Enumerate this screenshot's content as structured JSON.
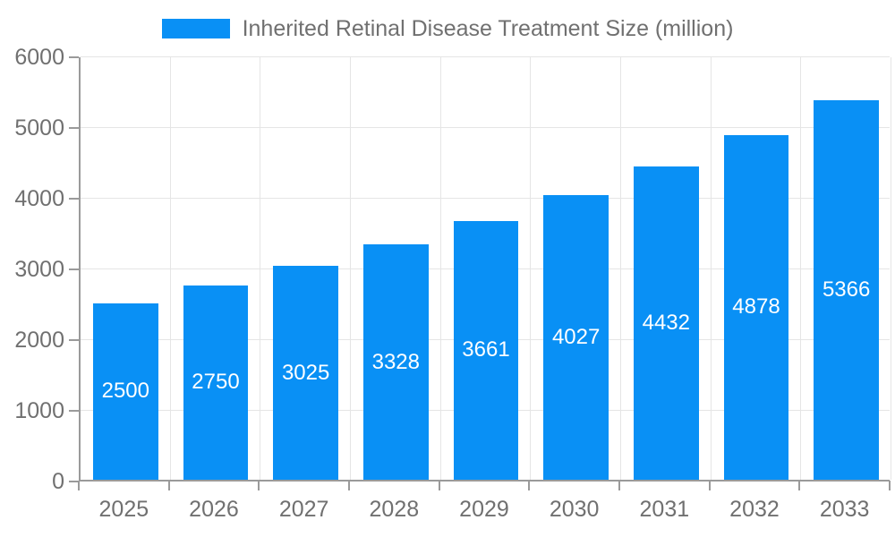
{
  "legend": {
    "label": "Inherited Retinal Disease Treatment Size (million)"
  },
  "chart_data": {
    "type": "bar",
    "title": "",
    "categories": [
      "2025",
      "2026",
      "2027",
      "2028",
      "2029",
      "2030",
      "2031",
      "2032",
      "2033"
    ],
    "series": [
      {
        "name": "Inherited Retinal Disease Treatment Size (million)",
        "values": [
          2500,
          2750,
          3025,
          3328,
          3661,
          4027,
          4432,
          4878,
          5366
        ]
      }
    ],
    "value_labels": [
      "2500",
      "2750",
      "3025",
      "3328",
      "3661",
      "4027",
      "4432",
      "4878",
      "5366"
    ],
    "xlabel": "",
    "ylabel": "",
    "ylim": [
      0,
      6000
    ],
    "yticks": [
      0,
      1000,
      2000,
      3000,
      4000,
      5000,
      6000
    ],
    "grid": true,
    "legend_position": "top-center",
    "value_label_position": "inside-middle"
  },
  "colors": {
    "bar": "#0990f5",
    "grid": "#e5e5e5",
    "axis": "#9a9a9a",
    "tick_text": "#707070",
    "value_text": "#ffffff",
    "background": "#ffffff"
  }
}
